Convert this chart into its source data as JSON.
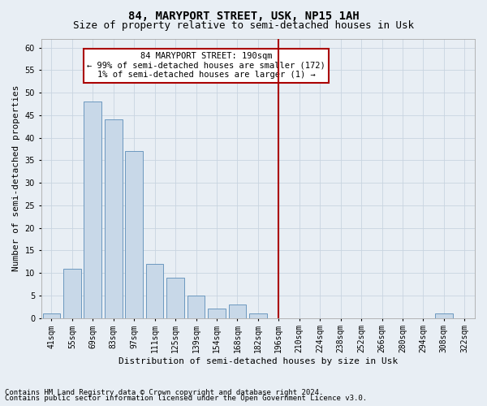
{
  "title": "84, MARYPORT STREET, USK, NP15 1AH",
  "subtitle": "Size of property relative to semi-detached houses in Usk",
  "xlabel": "Distribution of semi-detached houses by size in Usk",
  "ylabel": "Number of semi-detached properties",
  "categories": [
    "41sqm",
    "55sqm",
    "69sqm",
    "83sqm",
    "97sqm",
    "111sqm",
    "125sqm",
    "139sqm",
    "154sqm",
    "168sqm",
    "182sqm",
    "196sqm",
    "210sqm",
    "224sqm",
    "238sqm",
    "252sqm",
    "266sqm",
    "280sqm",
    "294sqm",
    "308sqm",
    "322sqm"
  ],
  "values": [
    1,
    11,
    48,
    44,
    37,
    12,
    9,
    5,
    2,
    3,
    1,
    0,
    0,
    0,
    0,
    0,
    0,
    0,
    0,
    1,
    0
  ],
  "bar_color": "#c8d8e8",
  "bar_edge_color": "#5b8db8",
  "vline_index": 11,
  "vline_color": "#aa0000",
  "annotation_text": "84 MARYPORT STREET: 190sqm\n← 99% of semi-detached houses are smaller (172)\n1% of semi-detached houses are larger (1) →",
  "annotation_box_color": "#aa0000",
  "ylim": [
    0,
    62
  ],
  "yticks": [
    0,
    5,
    10,
    15,
    20,
    25,
    30,
    35,
    40,
    45,
    50,
    55,
    60
  ],
  "grid_color": "#c8d4e0",
  "background_color": "#e8eef4",
  "footer_line1": "Contains HM Land Registry data © Crown copyright and database right 2024.",
  "footer_line2": "Contains public sector information licensed under the Open Government Licence v3.0.",
  "title_fontsize": 10,
  "subtitle_fontsize": 9,
  "axis_label_fontsize": 8,
  "tick_fontsize": 7,
  "annotation_fontsize": 7.5,
  "footer_fontsize": 6.5
}
